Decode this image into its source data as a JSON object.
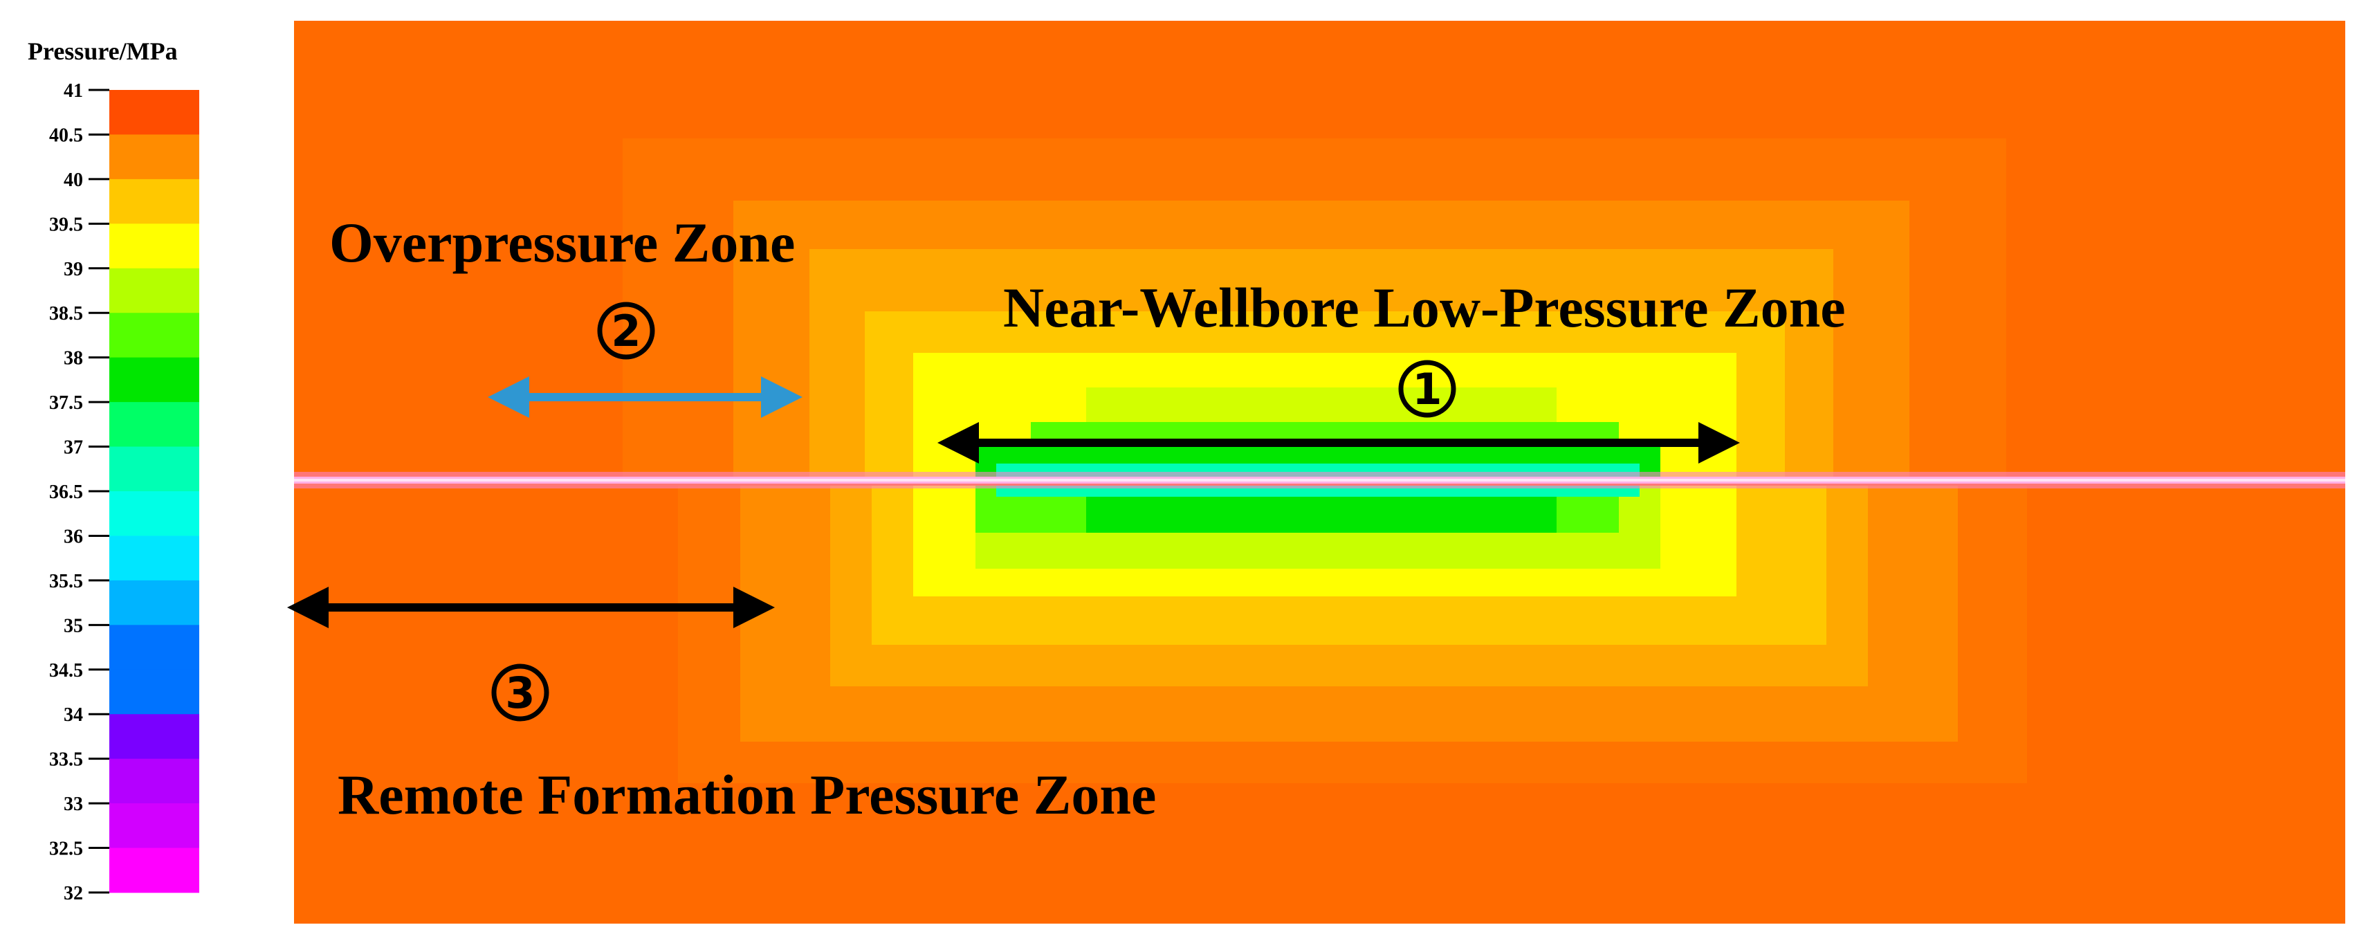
{
  "legend": {
    "title": "Pressure/MPa",
    "ticks": [
      "41",
      "40.5",
      "40",
      "39.5",
      "39",
      "38.5",
      "38",
      "37.5",
      "37",
      "36.5",
      "36",
      "35.5",
      "35",
      "34.5",
      "34",
      "33.5",
      "33",
      "32.5",
      "32"
    ],
    "colors": [
      "#ff4d00",
      "#ff8c00",
      "#ffc800",
      "#ffff00",
      "#b4ff00",
      "#55ff00",
      "#00e600",
      "#00ff66",
      "#00ffb4",
      "#00ffe6",
      "#00e6ff",
      "#00b4ff",
      "#0073ff",
      "#0073ff",
      "#7a00ff",
      "#b400ff",
      "#d200ff",
      "#ff00ff"
    ]
  },
  "field": {
    "background_color": "#ff6a00",
    "wellbore_color": "#ff80c8"
  },
  "annotations": {
    "overpressure": {
      "label": "Overpressure Zone",
      "marker": "②",
      "arrow_color": "#2f97d2"
    },
    "near_wellbore": {
      "label": "Near-Wellbore Low-Pressure Zone",
      "marker": "①",
      "arrow_color": "#000000"
    },
    "remote": {
      "label": "Remote Formation Pressure Zone",
      "marker": "③",
      "arrow_color": "#000000"
    }
  }
}
